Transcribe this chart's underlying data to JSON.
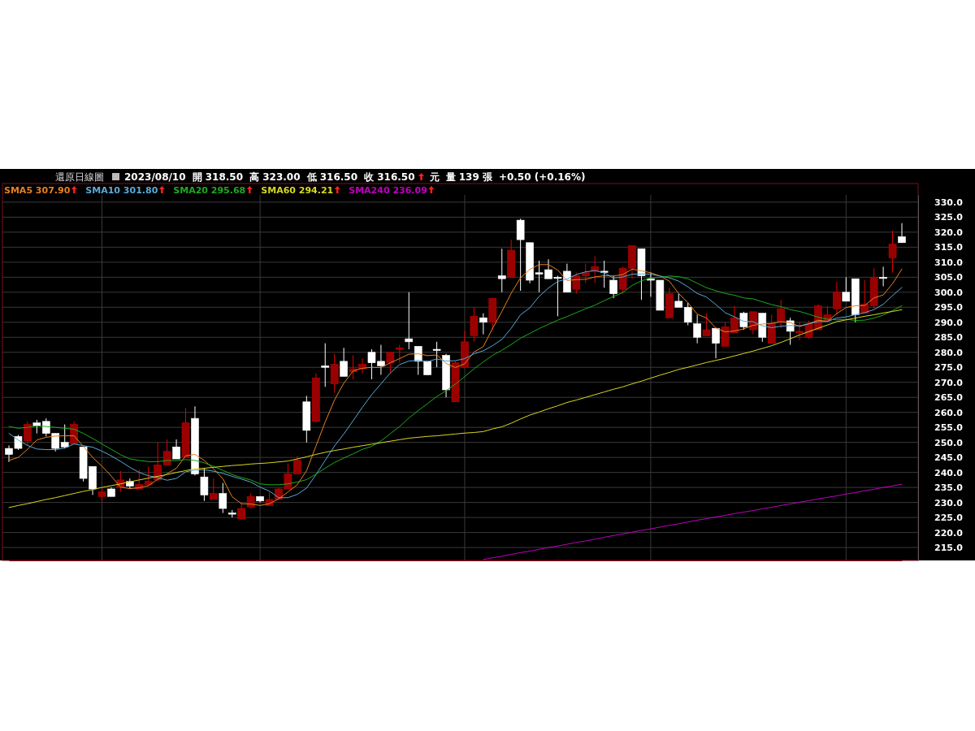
{
  "chart_data": {
    "type": "candlestick",
    "title": "還原日線圖",
    "annotations": [
      "2023/08/10",
      "開 318.50",
      "高 323.00",
      "低 316.50",
      "收 316.50",
      "元",
      "量 139 張",
      "+0.50 (+0.16%)"
    ],
    "categories": [
      null,
      null,
      null,
      null,
      null,
      null,
      null,
      null,
      null,
      null,
      null,
      null,
      null,
      null,
      null,
      null,
      null,
      null,
      null,
      null,
      null,
      null,
      null,
      null,
      null,
      null,
      null,
      null,
      null,
      null,
      null,
      null,
      null,
      null,
      null,
      null,
      null,
      null,
      null,
      null,
      null,
      null,
      null,
      null,
      null,
      null,
      null,
      null,
      null,
      null,
      null,
      null,
      null,
      null,
      null,
      null,
      null,
      null,
      null,
      null,
      null,
      null,
      null,
      null,
      null,
      null,
      null,
      null,
      null,
      null,
      null,
      null,
      null,
      null,
      null,
      null,
      null,
      null,
      null,
      null,
      null,
      null,
      null,
      null,
      null,
      null,
      null,
      null,
      null,
      null,
      null,
      null,
      null,
      null,
      null,
      null,
      null
    ],
    "ohlc": [
      [
        248,
        249,
        243.5,
        246
      ],
      [
        252,
        252.5,
        247.5,
        248
      ],
      [
        250.5,
        257,
        249,
        256
      ],
      [
        256.5,
        257.5,
        253,
        255.5
      ],
      [
        257,
        258,
        252,
        253
      ],
      [
        253,
        253,
        247,
        248
      ],
      [
        250,
        256,
        248,
        248.5
      ],
      [
        249.5,
        257,
        249.5,
        256
      ],
      [
        248.5,
        248.5,
        237,
        238
      ],
      [
        242,
        242,
        232.5,
        234.5
      ],
      [
        232,
        235,
        230.5,
        233.5
      ],
      [
        234.5,
        235,
        232,
        232
      ],
      [
        235,
        240.5,
        233.5,
        237.5
      ],
      [
        237,
        238,
        234.5,
        235.5
      ],
      [
        234.5,
        241,
        234.5,
        236
      ],
      [
        236,
        242,
        235.5,
        237
      ],
      [
        237.5,
        250,
        237,
        242.5
      ],
      [
        242.5,
        251,
        242.5,
        247
      ],
      [
        248.5,
        251,
        244.5,
        244.5
      ],
      [
        245,
        261.5,
        245,
        256.5
      ],
      [
        258,
        262,
        239,
        239.5
      ],
      [
        238.5,
        241.5,
        230.5,
        232.5
      ],
      [
        231,
        238,
        231,
        233
      ],
      [
        233,
        236.5,
        226.5,
        228
      ],
      [
        226.5,
        227.5,
        225,
        226.5
      ],
      [
        224.5,
        230,
        224.5,
        228
      ],
      [
        228.5,
        233,
        228,
        232
      ],
      [
        232,
        232,
        230,
        230.5
      ],
      [
        229,
        233.5,
        229,
        231
      ],
      [
        231,
        235,
        231,
        234.5
      ],
      [
        234.5,
        243,
        234.5,
        239.5
      ],
      [
        239.5,
        245.5,
        239.5,
        244
      ],
      [
        263.5,
        265.5,
        250,
        254
      ],
      [
        257,
        273,
        256.5,
        271.5
      ],
      [
        275.5,
        283,
        268.5,
        275
      ],
      [
        269.5,
        279.5,
        266.5,
        276
      ],
      [
        277,
        281.5,
        272,
        272
      ],
      [
        273.5,
        279,
        271,
        274.5
      ],
      [
        274.5,
        278,
        273,
        276
      ],
      [
        280,
        281,
        271,
        276.5
      ],
      [
        277,
        282.5,
        272.5,
        275.5
      ],
      [
        276.5,
        280,
        273,
        280
      ],
      [
        281,
        282.5,
        276.5,
        281.5
      ],
      [
        284.5,
        300,
        281,
        283.5
      ],
      [
        282,
        282,
        272.5,
        277
      ],
      [
        277,
        277,
        272.5,
        272.5
      ],
      [
        281,
        283.5,
        275,
        281
      ],
      [
        279,
        279.5,
        265,
        267.5
      ],
      [
        263.5,
        277,
        263.5,
        276.5
      ],
      [
        275,
        287,
        275,
        283.5
      ],
      [
        285.5,
        295,
        283.5,
        292
      ],
      [
        291.5,
        293,
        286,
        290
      ],
      [
        290,
        298,
        287.5,
        298
      ],
      [
        305.5,
        314.5,
        300,
        304.5
      ],
      [
        305,
        317.5,
        305,
        314
      ],
      [
        324,
        324.5,
        300.5,
        317.5
      ],
      [
        316.5,
        316.5,
        303,
        304
      ],
      [
        306.5,
        310.5,
        300,
        306
      ],
      [
        307.5,
        311,
        304.5,
        304.5
      ],
      [
        305,
        305.5,
        292,
        305
      ],
      [
        307,
        309.5,
        300,
        300
      ],
      [
        301,
        306.5,
        299.5,
        305.5
      ],
      [
        305.5,
        309.5,
        303,
        306.5
      ],
      [
        307,
        312,
        303,
        308.5
      ],
      [
        307,
        310.5,
        301.5,
        307
      ],
      [
        304,
        305.5,
        298,
        299.5
      ],
      [
        301,
        308.5,
        299.5,
        308
      ],
      [
        308,
        315.5,
        304.5,
        315.5
      ],
      [
        314.5,
        314.5,
        297.5,
        305.5
      ],
      [
        304.5,
        306.5,
        298.5,
        304
      ],
      [
        304,
        304,
        294,
        294
      ],
      [
        291.5,
        301.5,
        291.5,
        299.5
      ],
      [
        297,
        299.5,
        295,
        295
      ],
      [
        295,
        296.5,
        289,
        290
      ],
      [
        289.5,
        292.5,
        283,
        285
      ],
      [
        285.5,
        293,
        285.5,
        287.5
      ],
      [
        288,
        288,
        278,
        283
      ],
      [
        282,
        290,
        282,
        288.5
      ],
      [
        286.5,
        295.5,
        286.5,
        291.5
      ],
      [
        293,
        293.5,
        287.5,
        288.5
      ],
      [
        287.5,
        293.5,
        286,
        293.5
      ],
      [
        293,
        293,
        283.5,
        285
      ],
      [
        283,
        292.5,
        283,
        289.5
      ],
      [
        290,
        297.5,
        288,
        294.5
      ],
      [
        290.5,
        291.5,
        282.5,
        287
      ],
      [
        286.5,
        290,
        284,
        287
      ],
      [
        285,
        290.5,
        284.5,
        289.5
      ],
      [
        287.5,
        296,
        287.5,
        295.5
      ],
      [
        290.5,
        295.5,
        290,
        292.5
      ],
      [
        294.5,
        303.5,
        292.5,
        300
      ],
      [
        300,
        305,
        297,
        297
      ],
      [
        304.5,
        304.5,
        290,
        292.5
      ],
      [
        293,
        304,
        293,
        296
      ],
      [
        295.5,
        308,
        294.5,
        305
      ],
      [
        305,
        308.5,
        302,
        305
      ],
      [
        311.5,
        320.5,
        306.5,
        316
      ],
      [
        318.5,
        323,
        316.5,
        316.5
      ]
    ],
    "series": [
      {
        "name": "SMA5 307.90",
        "type": "line",
        "color": "#e8821e",
        "values": [
          244,
          245,
          247.7,
          250.8,
          251.7,
          252.1,
          252.2,
          252.2,
          248.7,
          245,
          242.1,
          238.8,
          235.1,
          234.6,
          234.9,
          235.6,
          237.7,
          239.6,
          241.4,
          245.5,
          246,
          244,
          241.2,
          237.9,
          231.9,
          229.6,
          229.5,
          229,
          229.6,
          231.2,
          233.5,
          235.9,
          240.6,
          248.7,
          256.8,
          264.1,
          269.7,
          273.8,
          274.7,
          275,
          274.9,
          276.5,
          277.9,
          279.4,
          279.5,
          278.9,
          279.1,
          276.3,
          274.9,
          276.2,
          280.1,
          281.9,
          288,
          293.6,
          299.7,
          304.8,
          307.6,
          309.2,
          309.2,
          307.4,
          303.9,
          304.2,
          304.3,
          305.1,
          305.5,
          305.4,
          305.9,
          307.7,
          307.1,
          306.5,
          305.4,
          303.7,
          299.6,
          296.5,
          292.7,
          291.4,
          288.1,
          286.8,
          287.1,
          287.8,
          289,
          289.4,
          289.6,
          290.2,
          289.9,
          288.6,
          289.5,
          290.7,
          290.3,
          292.9,
          294.9,
          295.5,
          295.6,
          298.1,
          299.1,
          302.9,
          307.7
        ]
      },
      {
        "name": "SMA10 301.80",
        "type": "line",
        "color": "#5aaad8",
        "values": [
          253,
          250.8,
          249,
          247.8,
          247.6,
          247.6,
          248.1,
          249.5,
          248.9,
          248.4,
          247.1,
          245.5,
          243.7,
          241.7,
          240,
          238.9,
          238.3,
          237.4,
          238,
          240.2,
          240.8,
          240.9,
          240.4,
          239.7,
          238.7,
          237.8,
          236.8,
          235.1,
          233.8,
          231.6,
          231.6,
          232.7,
          234.8,
          239.2,
          244,
          248.8,
          252.8,
          257.2,
          261.7,
          265.9,
          269.5,
          273.1,
          275.9,
          277.1,
          277.3,
          276.9,
          277.8,
          277.1,
          277.2,
          277.9,
          279.5,
          280.5,
          282.2,
          284.3,
          288,
          292.5,
          294.8,
          298.6,
          301.4,
          303.6,
          304.4,
          305.9,
          306.8,
          307.2,
          306.5,
          304.7,
          305.1,
          306,
          306.1,
          306,
          305.4,
          304.8,
          303.7,
          301.8,
          299.6,
          298.4,
          295.9,
          293.2,
          291.8,
          290.3,
          290.2,
          288.8,
          288.2,
          288.7,
          288.9,
          288.8,
          289.5,
          290.2,
          290.3,
          291.4,
          291.8,
          292.5,
          293.2,
          294.2,
          296,
          298.9,
          301.6
        ]
      },
      {
        "name": "SMA20 295.68",
        "type": "line",
        "color": "#1faa1f",
        "values": [
          255.3,
          254.7,
          255,
          255.5,
          255.3,
          255,
          254.7,
          254.4,
          253,
          251.3,
          249.5,
          247.7,
          245.9,
          244.5,
          244,
          243.6,
          243.6,
          244,
          243.9,
          244.3,
          244,
          243.2,
          242,
          240.7,
          239.3,
          238.3,
          237.5,
          236.2,
          235.9,
          235.9,
          236.2,
          236.8,
          237.6,
          239.4,
          241.4,
          243.3,
          244.8,
          246.2,
          247.7,
          248.7,
          250.5,
          252.9,
          255.3,
          258.1,
          260.6,
          262.9,
          265.3,
          267.2,
          269.4,
          271.9,
          274.5,
          276.8,
          279,
          280.7,
          282.6,
          284.7,
          286.3,
          287.9,
          289.3,
          290.7,
          291.9,
          293.2,
          294.5,
          295.7,
          297.2,
          298.6,
          299.9,
          302.3,
          303.8,
          304.8,
          304.9,
          305.4,
          305.2,
          304.5,
          303,
          301.5,
          300.5,
          299.6,
          299,
          298.1,
          297.8,
          296.8,
          295.9,
          295.2,
          294.2,
          293.6,
          292.7,
          291.7,
          291,
          290.8,
          291,
          290.6,
          290.7,
          291.4,
          292.4,
          293.9,
          295.5
        ]
      },
      {
        "name": "SMA60 294.21",
        "type": "line",
        "color": "#d8d820",
        "values": [
          228.3,
          229,
          229.6,
          230.3,
          231,
          231.6,
          232.3,
          233,
          233.7,
          234.3,
          235,
          235.6,
          236.2,
          236.9,
          237.5,
          238.1,
          238.7,
          239.3,
          240,
          240.6,
          241.2,
          241.4,
          241.7,
          242,
          242.3,
          242.5,
          242.8,
          243,
          243.2,
          243.5,
          243.8,
          244.5,
          245.2,
          246,
          246.7,
          247.3,
          247.8,
          248.4,
          248.9,
          249.4,
          249.9,
          250.4,
          250.9,
          251.4,
          251.7,
          252,
          252.2,
          252.5,
          252.8,
          253.1,
          253.3,
          253.6,
          254.5,
          255.2,
          256.4,
          257.8,
          259.1,
          260.1,
          261.2,
          262.2,
          263.3,
          264.1,
          265,
          265.9,
          266.8,
          267.7,
          268.5,
          269.5,
          270.4,
          271.4,
          272.4,
          273.3,
          274.3,
          275,
          275.8,
          276.6,
          277.3,
          278,
          278.8,
          279.6,
          280.4,
          281.3,
          282.2,
          283.3,
          284.5,
          285.8,
          286.9,
          288,
          289.1,
          290.2,
          290.8,
          291.4,
          292,
          292.5,
          293.1,
          293.6,
          294.2
        ]
      },
      {
        "name": "SMA240 236.09",
        "type": "line",
        "color": "#c000c0",
        "values": [
          null,
          null,
          null,
          null,
          null,
          null,
          null,
          null,
          null,
          null,
          null,
          null,
          null,
          null,
          null,
          null,
          null,
          null,
          null,
          null,
          null,
          null,
          null,
          null,
          null,
          null,
          null,
          null,
          null,
          null,
          null,
          null,
          null,
          null,
          null,
          null,
          null,
          null,
          null,
          null,
          null,
          null,
          null,
          null,
          null,
          null,
          null,
          null,
          null,
          null,
          null,
          211,
          211.6,
          212.1,
          212.7,
          213.3,
          213.8,
          214.4,
          215,
          215.5,
          216.1,
          216.7,
          217.2,
          217.8,
          218.4,
          219,
          219.5,
          220.1,
          220.7,
          221.2,
          221.8,
          222.4,
          222.9,
          223.5,
          224.1,
          224.6,
          225.2,
          225.7,
          226.3,
          226.8,
          227.3,
          227.9,
          228.4,
          229,
          229.5,
          230.1,
          230.6,
          231.2,
          231.7,
          232.2,
          232.8,
          233.3,
          233.9,
          234.4,
          235,
          235.5,
          236.1
        ]
      }
    ],
    "ylim": [
      210.7,
      332.4
    ],
    "yticks": [
      {
        "value": 215,
        "label": "215.0"
      },
      {
        "value": 220,
        "label": "220.0"
      },
      {
        "value": 225,
        "label": "225.0"
      },
      {
        "value": 230,
        "label": "230.0"
      },
      {
        "value": 235,
        "label": "235.0"
      },
      {
        "value": 240,
        "label": "240.0"
      },
      {
        "value": 245,
        "label": "245.0"
      },
      {
        "value": 250,
        "label": "250.0"
      },
      {
        "value": 255,
        "label": "255.0"
      },
      {
        "value": 260,
        "label": "260.0"
      },
      {
        "value": 265,
        "label": "265.0"
      },
      {
        "value": 270,
        "label": "270.0"
      },
      {
        "value": 275,
        "label": "275.0"
      },
      {
        "value": 280,
        "label": "280.0"
      },
      {
        "value": 285,
        "label": "285.0"
      },
      {
        "value": 290,
        "label": "290.0"
      },
      {
        "value": 295,
        "label": "295.0"
      },
      {
        "value": 300,
        "label": "300.0"
      },
      {
        "value": 305,
        "label": "305.0"
      },
      {
        "value": 310,
        "label": "310.0"
      },
      {
        "value": 315,
        "label": "315.0"
      },
      {
        "value": 320,
        "label": "320.0"
      },
      {
        "value": 325,
        "label": "325.0"
      },
      {
        "value": 330,
        "label": "330.0"
      }
    ],
    "grid": true,
    "legend": "top left",
    "tick_labels": "y"
  }
}
